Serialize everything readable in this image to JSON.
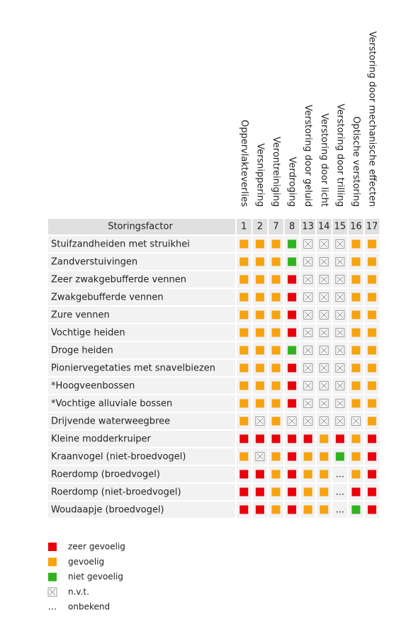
{
  "table": {
    "header": "Storingsfactor",
    "columns": [
      {
        "number": 1,
        "label": "Oppervlakteverlies"
      },
      {
        "number": 2,
        "label": "Versnippering"
      },
      {
        "number": 7,
        "label": "Verontreiniging"
      },
      {
        "number": 8,
        "label": "Verdroging"
      },
      {
        "number": 13,
        "label": "Verstoring door geluid"
      },
      {
        "number": 14,
        "label": "Verstoring door licht"
      },
      {
        "number": 15,
        "label": "Verstoring door trilling"
      },
      {
        "number": 16,
        "label": "Optische verstoring"
      },
      {
        "number": 17,
        "label": "Verstoring door mechanische effecten"
      }
    ],
    "rows": [
      {
        "name": "Stuifzandheiden met struikhei",
        "cells": [
          1,
          1,
          1,
          2,
          3,
          3,
          3,
          1,
          1
        ]
      },
      {
        "name": "Zandverstuivingen",
        "cells": [
          1,
          1,
          1,
          2,
          3,
          3,
          3,
          1,
          1
        ]
      },
      {
        "name": "Zeer zwakgebufferde vennen",
        "cells": [
          1,
          1,
          1,
          0,
          3,
          3,
          3,
          1,
          1
        ]
      },
      {
        "name": "Zwakgebufferde vennen",
        "cells": [
          1,
          1,
          1,
          0,
          3,
          3,
          3,
          1,
          1
        ]
      },
      {
        "name": "Zure vennen",
        "cells": [
          1,
          1,
          1,
          0,
          3,
          3,
          3,
          1,
          1
        ]
      },
      {
        "name": "Vochtige heiden",
        "cells": [
          1,
          1,
          1,
          0,
          3,
          3,
          3,
          1,
          1
        ]
      },
      {
        "name": "Droge heiden",
        "cells": [
          1,
          1,
          1,
          2,
          3,
          3,
          3,
          1,
          1
        ]
      },
      {
        "name": "Pioniervegetaties met snavelbiezen",
        "cells": [
          1,
          1,
          1,
          0,
          3,
          3,
          3,
          1,
          1
        ]
      },
      {
        "name": "*Hoogveenbossen",
        "cells": [
          1,
          1,
          1,
          0,
          3,
          3,
          3,
          1,
          1
        ]
      },
      {
        "name": "*Vochtige alluviale bossen",
        "cells": [
          1,
          1,
          1,
          0,
          3,
          3,
          3,
          1,
          1
        ]
      },
      {
        "name": "Drijvende waterweegbree",
        "cells": [
          1,
          3,
          1,
          3,
          3,
          3,
          3,
          3,
          1
        ]
      },
      {
        "name": "Kleine modderkruiper",
        "cells": [
          0,
          0,
          0,
          0,
          0,
          1,
          0,
          1,
          0
        ]
      },
      {
        "name": "Kraanvogel (niet-broedvogel)",
        "cells": [
          1,
          3,
          1,
          0,
          1,
          1,
          2,
          1,
          0
        ]
      },
      {
        "name": "Roerdomp (broedvogel)",
        "cells": [
          0,
          0,
          1,
          0,
          1,
          1,
          4,
          1,
          0
        ]
      },
      {
        "name": "Roerdomp (niet-broedvogel)",
        "cells": [
          0,
          0,
          1,
          0,
          1,
          1,
          4,
          0,
          0
        ]
      },
      {
        "name": "Woudaapje (broedvogel)",
        "cells": [
          0,
          0,
          1,
          0,
          1,
          1,
          4,
          2,
          0
        ]
      }
    ]
  },
  "legend": {
    "items": [
      {
        "color": "#e8000b",
        "label": "zeer gevoelig"
      },
      {
        "color": "#f7a20f",
        "label": "gevoelig"
      },
      {
        "color": "#2fb21f",
        "label": "niet gevoelig"
      },
      {
        "symbol": "box-x",
        "label": "n.v.t."
      },
      {
        "symbol": "...",
        "label": "onbekend"
      }
    ]
  }
}
